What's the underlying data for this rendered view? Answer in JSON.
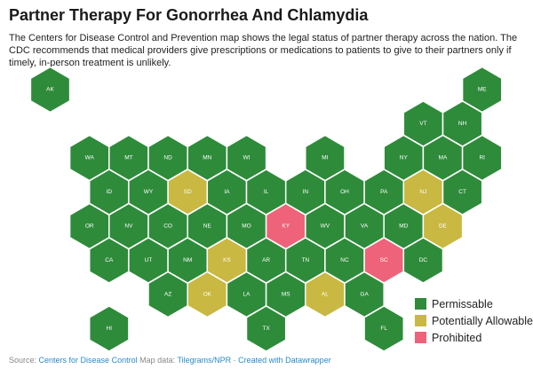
{
  "title": "Partner Therapy For Gonorrhea And Chlamydia",
  "description": "The Centers for Disease Control and Prevention map shows the legal status of partner therapy across the nation. The CDC recommends that medical providers give prescriptions or medications to patients to give to their partners only if timely, in-person treatment is unlikely.",
  "colors": {
    "permissable": "#2e8b3a",
    "potential": "#c9b841",
    "prohibited": "#ee6379"
  },
  "legend": [
    {
      "key": "permissable",
      "label": "Permissable"
    },
    {
      "key": "potential",
      "label": "Potentially Allowable"
    },
    {
      "key": "prohibited",
      "label": "Prohibited"
    }
  ],
  "states": [
    {
      "abbr": "AK",
      "row": 0,
      "col": 0,
      "status": "permissable"
    },
    {
      "abbr": "ME",
      "row": 0,
      "col": 11,
      "status": "permissable"
    },
    {
      "abbr": "VT",
      "row": 1,
      "col": 9,
      "status": "permissable"
    },
    {
      "abbr": "NH",
      "row": 1,
      "col": 10,
      "status": "permissable"
    },
    {
      "abbr": "WA",
      "row": 2,
      "col": 1,
      "status": "permissable"
    },
    {
      "abbr": "MT",
      "row": 2,
      "col": 2,
      "status": "permissable"
    },
    {
      "abbr": "ND",
      "row": 2,
      "col": 3,
      "status": "permissable"
    },
    {
      "abbr": "MN",
      "row": 2,
      "col": 4,
      "status": "permissable"
    },
    {
      "abbr": "WI",
      "row": 2,
      "col": 5,
      "status": "permissable"
    },
    {
      "abbr": "MI",
      "row": 2,
      "col": 7,
      "status": "permissable"
    },
    {
      "abbr": "NY",
      "row": 2,
      "col": 9,
      "status": "permissable"
    },
    {
      "abbr": "MA",
      "row": 2,
      "col": 10,
      "status": "permissable"
    },
    {
      "abbr": "RI",
      "row": 2,
      "col": 11,
      "status": "permissable"
    },
    {
      "abbr": "ID",
      "row": 3,
      "col": 1,
      "status": "permissable"
    },
    {
      "abbr": "WY",
      "row": 3,
      "col": 2,
      "status": "permissable"
    },
    {
      "abbr": "SD",
      "row": 3,
      "col": 3,
      "status": "potential"
    },
    {
      "abbr": "IA",
      "row": 3,
      "col": 4,
      "status": "permissable"
    },
    {
      "abbr": "IL",
      "row": 3,
      "col": 5,
      "status": "permissable"
    },
    {
      "abbr": "IN",
      "row": 3,
      "col": 6,
      "status": "permissable"
    },
    {
      "abbr": "OH",
      "row": 3,
      "col": 7,
      "status": "permissable"
    },
    {
      "abbr": "PA",
      "row": 3,
      "col": 8,
      "status": "permissable"
    },
    {
      "abbr": "NJ",
      "row": 3,
      "col": 9,
      "status": "potential"
    },
    {
      "abbr": "CT",
      "row": 3,
      "col": 10,
      "status": "permissable"
    },
    {
      "abbr": "OR",
      "row": 4,
      "col": 1,
      "status": "permissable"
    },
    {
      "abbr": "NV",
      "row": 4,
      "col": 2,
      "status": "permissable"
    },
    {
      "abbr": "CO",
      "row": 4,
      "col": 3,
      "status": "permissable"
    },
    {
      "abbr": "NE",
      "row": 4,
      "col": 4,
      "status": "permissable"
    },
    {
      "abbr": "MO",
      "row": 4,
      "col": 5,
      "status": "permissable"
    },
    {
      "abbr": "KY",
      "row": 4,
      "col": 6,
      "status": "prohibited"
    },
    {
      "abbr": "WV",
      "row": 4,
      "col": 7,
      "status": "permissable"
    },
    {
      "abbr": "VA",
      "row": 4,
      "col": 8,
      "status": "permissable"
    },
    {
      "abbr": "MD",
      "row": 4,
      "col": 9,
      "status": "permissable"
    },
    {
      "abbr": "DE",
      "row": 4,
      "col": 10,
      "status": "potential"
    },
    {
      "abbr": "CA",
      "row": 5,
      "col": 1,
      "status": "permissable"
    },
    {
      "abbr": "UT",
      "row": 5,
      "col": 2,
      "status": "permissable"
    },
    {
      "abbr": "NM",
      "row": 5,
      "col": 3,
      "status": "permissable"
    },
    {
      "abbr": "KS",
      "row": 5,
      "col": 4,
      "status": "potential"
    },
    {
      "abbr": "AR",
      "row": 5,
      "col": 5,
      "status": "permissable"
    },
    {
      "abbr": "TN",
      "row": 5,
      "col": 6,
      "status": "permissable"
    },
    {
      "abbr": "NC",
      "row": 5,
      "col": 7,
      "status": "permissable"
    },
    {
      "abbr": "SC",
      "row": 5,
      "col": 8,
      "status": "prohibited"
    },
    {
      "abbr": "DC",
      "row": 5,
      "col": 9,
      "status": "permissable"
    },
    {
      "abbr": "AZ",
      "row": 6,
      "col": 3,
      "status": "permissable"
    },
    {
      "abbr": "OK",
      "row": 6,
      "col": 4,
      "status": "potential"
    },
    {
      "abbr": "LA",
      "row": 6,
      "col": 5,
      "status": "permissable"
    },
    {
      "abbr": "MS",
      "row": 6,
      "col": 6,
      "status": "permissable"
    },
    {
      "abbr": "AL",
      "row": 6,
      "col": 7,
      "status": "potential"
    },
    {
      "abbr": "GA",
      "row": 6,
      "col": 8,
      "status": "permissable"
    },
    {
      "abbr": "HI",
      "row": 7,
      "col": 1,
      "status": "permissable"
    },
    {
      "abbr": "TX",
      "row": 7,
      "col": 5,
      "status": "permissable"
    },
    {
      "abbr": "FL",
      "row": 7,
      "col": 8,
      "status": "permissable"
    }
  ],
  "footer": {
    "source_prefix": "Source: ",
    "source_link": "Centers for Disease Control",
    "map_prefix": " Map data: ",
    "map_link": "Tilegrams/NPR",
    "separator": " · ",
    "credit_link": "Created with Datawrapper"
  }
}
